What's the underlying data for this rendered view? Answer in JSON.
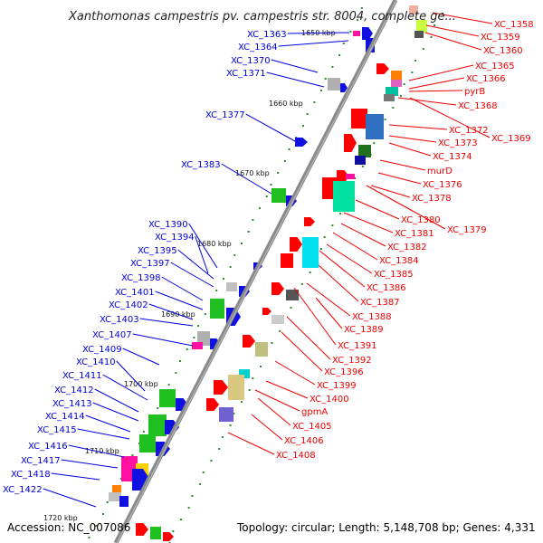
{
  "title": "Xanthomonas campestris pv. campestris str. 8004, complete ge...",
  "footer": {
    "accession": "Accession: NC_007086",
    "summary": "Topology: circular; Length: 5,148,708 bp; Genes: 4,331"
  },
  "colors": {
    "backbone": "#8a8a8a",
    "left_label": "#0000dd",
    "right_label": "#ee0000",
    "tick": "#2e8b2e"
  },
  "kbp_marks": [
    "1650 kbp",
    "1660 kbp",
    "1670 kbp",
    "1680 kbp",
    "1690 kbp",
    "1700 kbp",
    "1710 kbp",
    "1720 kbp"
  ],
  "left_genes": [
    "XC_1363",
    "XC_1364",
    "XC_1370",
    "XC_1371",
    "XC_1377",
    "XC_1383",
    "XC_1390",
    "XC_1394",
    "XC_1395",
    "XC_1397",
    "XC_1398",
    "XC_1401",
    "XC_1402",
    "XC_1403",
    "XC_1407",
    "XC_1409",
    "XC_1410",
    "XC_1411",
    "XC_1412",
    "XC_1413",
    "XC_1414",
    "XC_1415",
    "XC_1416",
    "XC_1417",
    "XC_1418",
    "XC_1422"
  ],
  "right_genes": [
    "XC_1358",
    "XC_1359",
    "XC_1360",
    "XC_1365",
    "XC_1366",
    "pyrB",
    "XC_1368",
    "XC_1372",
    "XC_1369",
    "XC_1373",
    "XC_1374",
    "murD",
    "XC_1376",
    "XC_1378",
    "XC_1380",
    "XC_1379",
    "XC_1381",
    "XC_1382",
    "XC_1384",
    "XC_1385",
    "XC_1386",
    "XC_1387",
    "XC_1388",
    "XC_1389",
    "XC_1391",
    "XC_1392",
    "XC_1396",
    "XC_1399",
    "XC_1400",
    "gpmA",
    "XC_1405",
    "XC_1406",
    "XC_1408"
  ]
}
